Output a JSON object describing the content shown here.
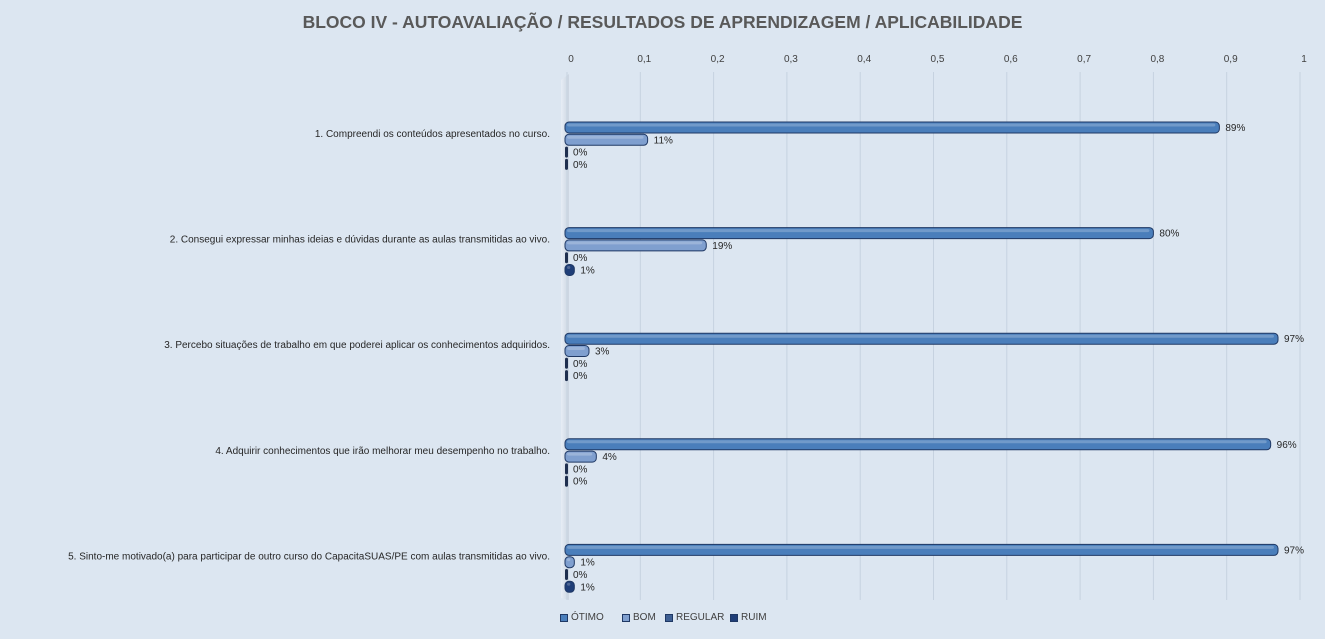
{
  "chart_data": {
    "type": "bar",
    "orientation": "horizontal",
    "title": "BLOCO IV - AUTOAVALIAÇÃO / RESULTADOS  DE APRENDIZAGEM  / APLICABILIDADE",
    "xlim": [
      0,
      1
    ],
    "x_ticks": [
      "0",
      "0,1",
      "0,2",
      "0,3",
      "0,4",
      "0,5",
      "0,6",
      "0,7",
      "0,8",
      "0,9",
      "1"
    ],
    "x_tick_values": [
      0,
      0.1,
      0.2,
      0.3,
      0.4,
      0.5,
      0.6,
      0.7,
      0.8,
      0.9,
      1
    ],
    "x_axis_position": "top",
    "grid": true,
    "legend_position": "bottom",
    "categories": [
      "1. Compreendi os conteúdos apresentados no curso.",
      "2. Consegui expressar minhas ideias e dúvidas durante as aulas transmitidas ao vivo.",
      "3. Percebo situações de trabalho em que poderei aplicar os conhecimentos adquiridos.",
      "4. Adquirir conhecimentos que irão melhorar meu desempenho no trabalho.",
      "5. Sinto-me motivado(a) para participar de outro curso do CapacitaSUAS/PE com aulas transmitidas ao vivo."
    ],
    "series": [
      {
        "name": "ÓTIMO",
        "color": "#4a7ebb",
        "values": [
          0.89,
          0.8,
          0.97,
          0.96,
          0.97
        ],
        "labels": [
          "89%",
          "80%",
          "97%",
          "96%",
          "97%"
        ]
      },
      {
        "name": "BOM",
        "color": "#7f9fcf",
        "values": [
          0.11,
          0.19,
          0.03,
          0.04,
          0.01
        ],
        "labels": [
          "11%",
          "19%",
          "3%",
          "4%",
          "1%"
        ]
      },
      {
        "name": "REGULAR",
        "color": "#3e5f93",
        "values": [
          0,
          0,
          0,
          0,
          0
        ],
        "labels": [
          "0%",
          "0%",
          "0%",
          "0%",
          "0%"
        ]
      },
      {
        "name": "RUIM",
        "color": "#1f3e78",
        "values": [
          0,
          0.01,
          0,
          0,
          0.01
        ],
        "labels": [
          "0%",
          "1%",
          "0%",
          "0%",
          "1%"
        ]
      }
    ]
  }
}
